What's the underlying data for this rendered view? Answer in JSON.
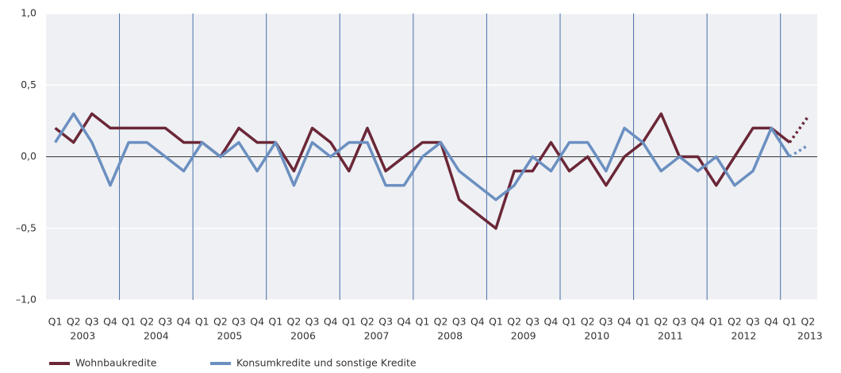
{
  "chart_data": {
    "type": "line",
    "categories": [
      "Q1",
      "Q2",
      "Q3",
      "Q4",
      "Q1",
      "Q2",
      "Q3",
      "Q4",
      "Q1",
      "Q2",
      "Q3",
      "Q4",
      "Q1",
      "Q2",
      "Q3",
      "Q4",
      "Q1",
      "Q2",
      "Q3",
      "Q4",
      "Q1",
      "Q2",
      "Q3",
      "Q4",
      "Q1",
      "Q2",
      "Q3",
      "Q4",
      "Q1",
      "Q2",
      "Q3",
      "Q4",
      "Q1",
      "Q2",
      "Q3",
      "Q4",
      "Q1",
      "Q2",
      "Q3",
      "Q4",
      "Q1",
      "Q2"
    ],
    "years": [
      "2003",
      "2004",
      "2005",
      "2006",
      "2007",
      "2008",
      "2009",
      "2010",
      "2011",
      "2012",
      "2013"
    ],
    "series": [
      {
        "name": "Wohnbaukredite",
        "color": "#6b2737",
        "values": [
          0.2,
          0.1,
          0.3,
          0.2,
          0.2,
          0.2,
          0.2,
          0.1,
          0.1,
          0.0,
          0.2,
          0.1,
          0.1,
          -0.1,
          0.2,
          0.1,
          -0.1,
          0.2,
          -0.1,
          0.0,
          0.1,
          0.1,
          -0.3,
          -0.4,
          -0.5,
          -0.1,
          -0.1,
          0.1,
          -0.1,
          0.0,
          -0.2,
          0.0,
          0.1,
          0.3,
          0.0,
          0.0,
          -0.2,
          0.0,
          0.2,
          0.2,
          0.1,
          0.28
        ]
      },
      {
        "name": "Konsumkredite und sonstige Kredite",
        "color": "#6b8fc0",
        "values": [
          0.1,
          0.3,
          0.1,
          -0.2,
          0.1,
          0.1,
          0.0,
          -0.1,
          0.1,
          0.0,
          0.1,
          -0.1,
          0.1,
          -0.2,
          0.1,
          0.0,
          0.1,
          0.1,
          -0.2,
          -0.2,
          0.0,
          0.1,
          -0.1,
          -0.2,
          -0.3,
          -0.2,
          0.0,
          -0.1,
          0.1,
          0.1,
          -0.1,
          0.2,
          0.1,
          -0.1,
          0.0,
          -0.1,
          0.0,
          -0.2,
          -0.1,
          0.2,
          0.0,
          0.08
        ]
      }
    ],
    "dashed_from": 40,
    "ylim": [
      -1,
      1
    ],
    "yticks": [
      {
        "value": -1,
        "label": "–1,0"
      },
      {
        "value": -0.5,
        "label": "–0,5"
      },
      {
        "value": 0,
        "label": "0,0"
      },
      {
        "value": 0.5,
        "label": "0,5"
      },
      {
        "value": 1,
        "label": "1,0"
      }
    ],
    "grid": true
  }
}
